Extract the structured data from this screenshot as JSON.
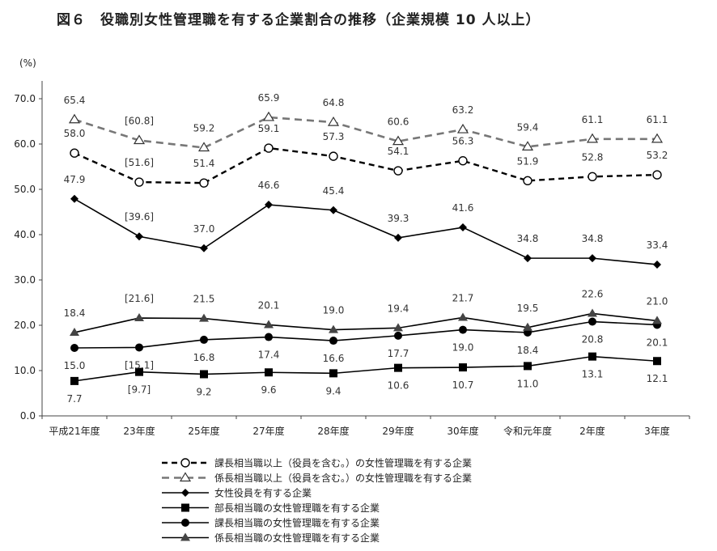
{
  "title": "図６　役職別女性管理職を有する企業割合の推移（企業規模 10 人以上）",
  "chart_data": {
    "type": "line",
    "ylabel": "(%)",
    "ylim": [
      0,
      70
    ],
    "yticks": [
      "0.0",
      "10.0",
      "20.0",
      "30.0",
      "40.0",
      "50.0",
      "60.0",
      "70.0"
    ],
    "ytick_values": [
      0,
      10,
      20,
      30,
      40,
      50,
      60,
      70
    ],
    "categories": [
      "平成21年度",
      "23年度",
      "25年度",
      "27年度",
      "28年度",
      "29年度",
      "30年度",
      "令和元年度",
      "2年度",
      "3年度"
    ],
    "series": [
      {
        "name": "課長相当職以上（役員を含む。）の女性管理職を有する企業",
        "values": [
          58.0,
          51.6,
          51.4,
          59.1,
          57.3,
          54.1,
          56.3,
          51.9,
          52.8,
          53.2
        ],
        "labels": [
          "58.0",
          "[51.6]",
          "51.4",
          "59.1",
          "57.3",
          "54.1",
          "56.3",
          "51.9",
          "52.8",
          "53.2"
        ],
        "style": "dashed",
        "marker": "circle-open"
      },
      {
        "name": "係長相当職以上（役員を含む。）の女性管理職を有する企業",
        "values": [
          65.4,
          60.8,
          59.2,
          65.9,
          64.8,
          60.6,
          63.2,
          59.4,
          61.1,
          61.1
        ],
        "labels": [
          "65.4",
          "[60.8]",
          "59.2",
          "65.9",
          "64.8",
          "60.6",
          "63.2",
          "59.4",
          "61.1",
          "61.1"
        ],
        "style": "dashed-gray",
        "marker": "triangle-open"
      },
      {
        "name": "女性役員を有する企業",
        "values": [
          47.9,
          39.6,
          37.0,
          46.6,
          45.4,
          39.3,
          41.6,
          34.8,
          34.8,
          33.4
        ],
        "labels": [
          "47.9",
          "[39.6]",
          "37.0",
          "46.6",
          "45.4",
          "39.3",
          "41.6",
          "34.8",
          "34.8",
          "33.4"
        ],
        "style": "solid",
        "marker": "diamond"
      },
      {
        "name": "部長相当職の女性管理職を有する企業",
        "values": [
          7.7,
          9.7,
          9.2,
          9.6,
          9.4,
          10.6,
          10.7,
          11.0,
          13.1,
          12.1
        ],
        "labels": [
          "7.7",
          "[9.7]",
          "9.2",
          "9.6",
          "9.4",
          "10.6",
          "10.7",
          "11.0",
          "13.1",
          "12.1"
        ],
        "style": "solid",
        "marker": "square"
      },
      {
        "name": "課長相当職の女性管理職を有する企業",
        "values": [
          15.0,
          15.1,
          16.8,
          17.4,
          16.6,
          17.7,
          19.0,
          18.4,
          20.8,
          20.1
        ],
        "labels": [
          "15.0",
          "[15.1]",
          "16.8",
          "17.4",
          "16.6",
          "17.7",
          "19.0",
          "18.4",
          "20.8",
          "20.1"
        ],
        "style": "solid",
        "marker": "circle"
      },
      {
        "name": "係長相当職の女性管理職を有する企業",
        "values": [
          18.4,
          21.6,
          21.5,
          20.1,
          19.0,
          19.4,
          21.7,
          19.5,
          22.6,
          21.0
        ],
        "labels": [
          "18.4",
          "[21.6]",
          "21.5",
          "20.1",
          "19.0",
          "19.4",
          "21.7",
          "19.5",
          "22.6",
          "21.0"
        ],
        "style": "solid",
        "marker": "triangle"
      }
    ],
    "grid": false,
    "legend_position": "bottom"
  }
}
